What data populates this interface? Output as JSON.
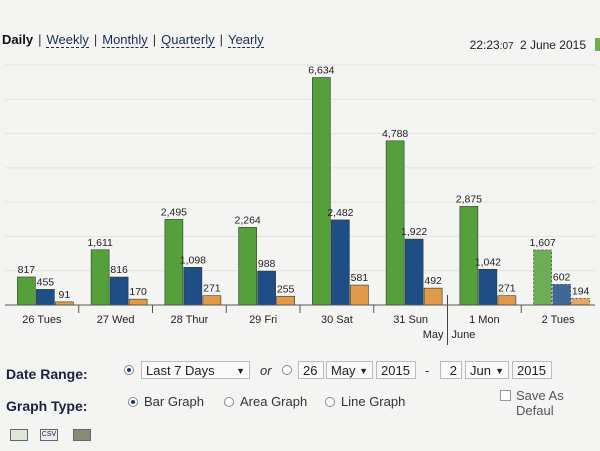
{
  "tabs": [
    {
      "label": "Daily",
      "active": true
    },
    {
      "label": "Weekly",
      "active": false
    },
    {
      "label": "Monthly",
      "active": false
    },
    {
      "label": "Quarterly",
      "active": false
    },
    {
      "label": "Yearly",
      "active": false
    }
  ],
  "tab_separator": "|",
  "clock": {
    "time": "22:23",
    "seconds": ":07",
    "date": "2 June 2015"
  },
  "chart_data": {
    "type": "bar",
    "categories": [
      "26 Tues",
      "27 Wed",
      "28 Thur",
      "29 Fri",
      "30 Sat",
      "31 Sun",
      "1 Mon",
      "2 Tues"
    ],
    "month_labels": [
      "May",
      "June"
    ],
    "series": [
      {
        "color": "#55a03a",
        "values": [
          817,
          1611,
          2495,
          2264,
          6634,
          4788,
          2875,
          1607
        ]
      },
      {
        "color": "#1f4d86",
        "values": [
          455,
          816,
          1098,
          988,
          2482,
          1922,
          1042,
          602
        ]
      },
      {
        "color": "#e19a4a",
        "values": [
          91,
          170,
          271,
          255,
          581,
          492,
          271,
          194
        ]
      }
    ],
    "data_labels": [
      [
        "817",
        "1,611",
        "2,495",
        "2,264",
        "6,634",
        "4,788",
        "2,875",
        "1,607"
      ],
      [
        "455",
        "816",
        "1,098",
        "988",
        "2,482",
        "1,922",
        "1,042",
        "602"
      ],
      [
        "91",
        "170",
        "271",
        "255",
        "581",
        "492",
        "271",
        "194"
      ]
    ],
    "ylim": [
      0,
      7000
    ],
    "grid": true,
    "last_column_partial": true
  },
  "controls": {
    "date_range_label": "Date Range:",
    "preset_value": "Last 7 Days",
    "or_text": "or",
    "from_day": "26",
    "from_month": "May",
    "from_year": "2015",
    "dash": "-",
    "to_day": "2",
    "to_month": "Jun",
    "to_year": "2015",
    "graph_type_label": "Graph Type:",
    "graph_types": [
      {
        "label": "Bar Graph",
        "selected": true
      },
      {
        "label": "Area Graph",
        "selected": false
      },
      {
        "label": "Line Graph",
        "selected": false
      }
    ],
    "save_default_label": "Save As Defaul",
    "exports": [
      {
        "icon": "excel-export-icon",
        "label": ""
      },
      {
        "icon": "csv-export-icon",
        "label": "CSV"
      },
      {
        "icon": "xml-export-icon",
        "label": ""
      }
    ]
  }
}
